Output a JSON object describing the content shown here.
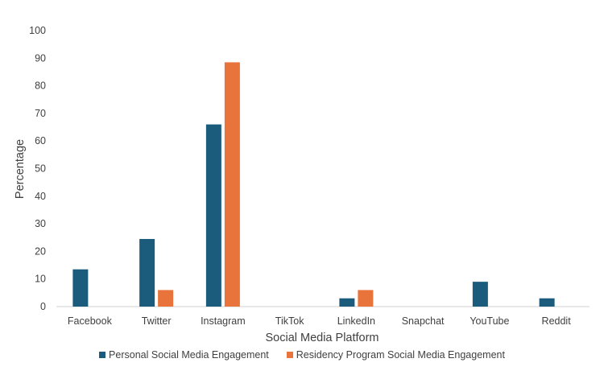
{
  "chart_data": {
    "type": "bar",
    "title": "",
    "xlabel": "Social Media Platform",
    "ylabel": "Percentage",
    "ylim": [
      0,
      100
    ],
    "yticks": [
      0,
      10,
      20,
      30,
      40,
      50,
      60,
      70,
      80,
      90,
      100
    ],
    "grid": false,
    "legend_position": "bottom",
    "categories": [
      "Facebook",
      "Twitter",
      "Instagram",
      "TikTok",
      "LinkedIn",
      "Snapchat",
      "YouTube",
      "Reddit"
    ],
    "series": [
      {
        "name": "Personal Social Media Engagement",
        "color": "#1b5c7d",
        "values": [
          13.5,
          24.5,
          66,
          0,
          3,
          0,
          9,
          3
        ]
      },
      {
        "name": "Residency Program Social Media Engagement",
        "color": "#e8743b",
        "values": [
          0,
          6,
          88.5,
          0,
          6,
          0,
          0,
          0
        ]
      }
    ]
  }
}
